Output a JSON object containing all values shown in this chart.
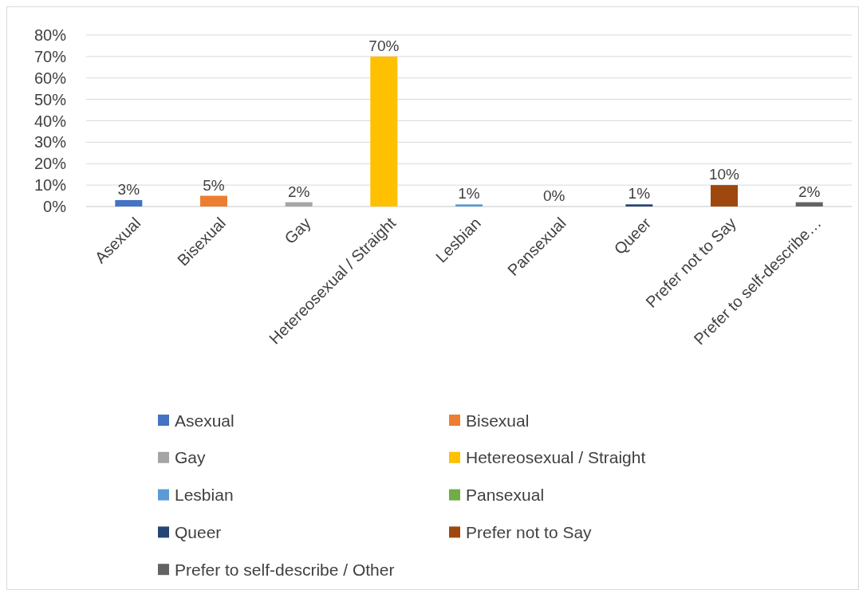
{
  "chart_data": {
    "type": "bar",
    "categories": [
      "Asexual",
      "Bisexual",
      "Gay",
      "Hetereosexual / Straight",
      "Lesbian",
      "Pansexual",
      "Queer",
      "Prefer not to Say",
      "Prefer to self-describe…"
    ],
    "series": [
      {
        "name": "Asexual",
        "color": "#4472c4",
        "values": [
          3,
          null,
          null,
          null,
          null,
          null,
          null,
          null,
          null
        ],
        "value_labels": [
          "3%",
          null,
          null,
          null,
          null,
          null,
          null,
          null,
          null
        ]
      },
      {
        "name": "Bisexual",
        "color": "#ed7d31",
        "values": [
          null,
          5,
          null,
          null,
          null,
          null,
          null,
          null,
          null
        ],
        "value_labels": [
          null,
          "5%",
          null,
          null,
          null,
          null,
          null,
          null,
          null
        ]
      },
      {
        "name": "Gay",
        "color": "#a5a5a5",
        "values": [
          null,
          null,
          2,
          null,
          null,
          null,
          null,
          null,
          null
        ],
        "value_labels": [
          null,
          null,
          "2%",
          null,
          null,
          null,
          null,
          null,
          null
        ]
      },
      {
        "name": "Hetereosexual / Straight",
        "color": "#ffc000",
        "values": [
          null,
          null,
          null,
          70,
          null,
          null,
          null,
          null,
          null
        ],
        "value_labels": [
          null,
          null,
          null,
          "70%",
          null,
          null,
          null,
          null,
          null
        ]
      },
      {
        "name": "Lesbian",
        "color": "#5b9bd5",
        "values": [
          null,
          null,
          null,
          null,
          1,
          null,
          null,
          null,
          null
        ],
        "value_labels": [
          null,
          null,
          null,
          null,
          "1%",
          null,
          null,
          null,
          null
        ]
      },
      {
        "name": "Pansexual",
        "color": "#70ad47",
        "values": [
          null,
          null,
          null,
          null,
          null,
          0,
          null,
          null,
          null
        ],
        "value_labels": [
          null,
          null,
          null,
          null,
          null,
          "0%",
          null,
          null,
          null
        ]
      },
      {
        "name": "Queer",
        "color": "#264478",
        "values": [
          null,
          null,
          null,
          null,
          null,
          null,
          1,
          null,
          null
        ],
        "value_labels": [
          null,
          null,
          null,
          null,
          null,
          null,
          "1%",
          null,
          null
        ]
      },
      {
        "name": "Prefer not to Say",
        "color": "#9e480e",
        "values": [
          null,
          null,
          null,
          null,
          null,
          null,
          null,
          10,
          null
        ],
        "value_labels": [
          null,
          null,
          null,
          null,
          null,
          null,
          null,
          "10%",
          null
        ]
      },
      {
        "name": "Prefer to self-describe / Other",
        "color": "#636363",
        "values": [
          null,
          null,
          null,
          null,
          null,
          null,
          null,
          null,
          2
        ],
        "value_labels": [
          null,
          null,
          null,
          null,
          null,
          null,
          null,
          null,
          "2%"
        ]
      }
    ],
    "ylim": [
      0,
      80
    ],
    "yticks": [
      {
        "value": 0,
        "label": "0%"
      },
      {
        "value": 10,
        "label": "10%"
      },
      {
        "value": 20,
        "label": "20%"
      },
      {
        "value": 30,
        "label": "30%"
      },
      {
        "value": 40,
        "label": "40%"
      },
      {
        "value": 50,
        "label": "50%"
      },
      {
        "value": 60,
        "label": "60%"
      },
      {
        "value": 70,
        "label": "70%"
      },
      {
        "value": 80,
        "label": "80%"
      }
    ],
    "grid": "y",
    "legend": "bottom"
  }
}
